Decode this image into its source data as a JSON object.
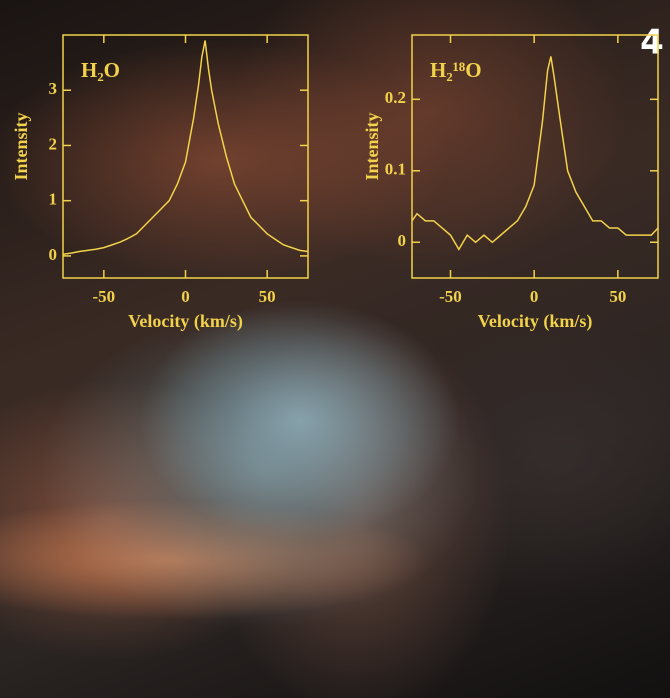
{
  "panel_label": "4",
  "chart_data": [
    {
      "type": "line",
      "title": "H₂O",
      "x_label": "Velocity (km/s)",
      "y_label": "Intensity",
      "xlim": [
        -75,
        75
      ],
      "ylim": [
        -0.4,
        4.0
      ],
      "xticks": [
        -50,
        0,
        50
      ],
      "yticks": [
        0,
        1,
        2,
        3
      ],
      "color": "#f2d24a",
      "x": [
        -75,
        -70,
        -65,
        -60,
        -55,
        -50,
        -45,
        -40,
        -35,
        -30,
        -25,
        -20,
        -15,
        -10,
        -5,
        0,
        5,
        8,
        10,
        12,
        14,
        16,
        20,
        25,
        30,
        35,
        40,
        45,
        50,
        55,
        60,
        65,
        70,
        75
      ],
      "values": [
        0.03,
        0.05,
        0.08,
        0.1,
        0.12,
        0.15,
        0.2,
        0.25,
        0.32,
        0.4,
        0.55,
        0.7,
        0.85,
        1.0,
        1.3,
        1.7,
        2.5,
        3.1,
        3.6,
        3.9,
        3.4,
        3.0,
        2.4,
        1.8,
        1.3,
        1.0,
        0.7,
        0.55,
        0.4,
        0.3,
        0.2,
        0.15,
        0.1,
        0.08
      ]
    },
    {
      "type": "line",
      "title": "H₂¹⁸O",
      "x_label": "Velocity (km/s)",
      "y_label": "Intensity",
      "xlim": [
        -73,
        74
      ],
      "ylim": [
        -0.05,
        0.29
      ],
      "xticks": [
        -50,
        0,
        50
      ],
      "yticks": [
        0,
        0.1,
        0.2
      ],
      "color": "#f2d24a",
      "x": [
        -73,
        -70,
        -65,
        -60,
        -55,
        -50,
        -45,
        -40,
        -35,
        -30,
        -25,
        -20,
        -15,
        -10,
        -5,
        0,
        5,
        8,
        10,
        12,
        15,
        20,
        25,
        30,
        35,
        40,
        45,
        50,
        55,
        60,
        65,
        70,
        74
      ],
      "values": [
        0.03,
        0.04,
        0.03,
        0.03,
        0.02,
        0.01,
        -0.01,
        0.01,
        0.0,
        0.01,
        0.0,
        0.01,
        0.02,
        0.03,
        0.05,
        0.08,
        0.17,
        0.24,
        0.26,
        0.23,
        0.18,
        0.1,
        0.07,
        0.05,
        0.03,
        0.03,
        0.02,
        0.02,
        0.01,
        0.01,
        0.01,
        0.01,
        0.02
      ]
    }
  ]
}
